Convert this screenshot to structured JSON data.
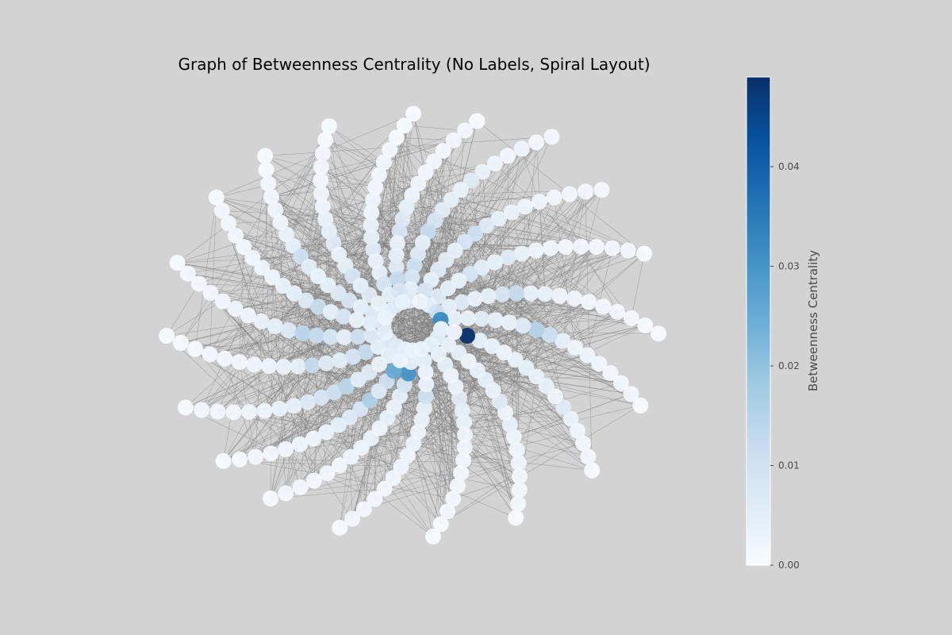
{
  "chart_data": {
    "type": "network",
    "title": "Graph of Betweenness Centrality (No Labels, Spiral Layout)",
    "layout": "spiral",
    "node_labels": "none",
    "edges": {
      "directed": true,
      "color": "#808080"
    },
    "arms": [
      {
        "angle": 95,
        "betweenness": [
          0.006,
          0.004,
          0.008,
          0.01,
          0.006,
          0.004,
          0.012,
          0.008,
          0.005,
          0.004,
          0.003,
          0.006,
          0.003,
          0.002,
          0.001,
          0.002,
          0.001,
          0.001
        ]
      },
      {
        "angle": 75,
        "betweenness": [
          0.002,
          0.008,
          0.004,
          0.006,
          0.005,
          0.004,
          0.008,
          0.01,
          0.006,
          0.004,
          0.003,
          0.002,
          0.002,
          0.001,
          0.001,
          0.001,
          0.001
        ]
      },
      {
        "angle": 55,
        "betweenness": [
          0.004,
          0.006,
          0.004,
          0.003,
          0.008,
          0.005,
          0.004,
          0.006,
          0.003,
          0.002,
          0.002,
          0.001,
          0.001,
          0.001,
          0.001,
          0.001,
          0.0
        ]
      },
      {
        "angle": 33,
        "betweenness": [
          0.01,
          0.004,
          0.006,
          0.003,
          0.004,
          0.008,
          0.012,
          0.004,
          0.003,
          0.002,
          0.002,
          0.001,
          0.001,
          0.001,
          0.001,
          0.0,
          0.0
        ]
      },
      {
        "angle": 13,
        "betweenness": [
          0.032,
          0.004,
          0.003,
          0.005,
          0.004,
          0.003,
          0.006,
          0.015,
          0.01,
          0.004,
          0.002,
          0.002,
          0.001,
          0.001,
          0.001,
          0.001,
          0.0
        ]
      },
      {
        "angle": -8,
        "betweenness": [
          0.003,
          0.002,
          0.049,
          0.004,
          0.003,
          0.002,
          0.003,
          0.004,
          0.003,
          0.004,
          0.002,
          0.006,
          0.003,
          0.002,
          0.001,
          0.001,
          0.0
        ]
      },
      {
        "angle": -30,
        "betweenness": [
          0.005,
          0.003,
          0.004,
          0.002,
          0.003,
          0.004,
          0.003,
          0.006,
          0.002,
          0.004,
          0.002,
          0.002,
          0.002,
          0.001,
          0.001,
          0.001,
          0.0
        ]
      },
      {
        "angle": -50,
        "betweenness": [
          0.004,
          0.003,
          0.004,
          0.002,
          0.003,
          0.006,
          0.004,
          0.003,
          0.002,
          0.002,
          0.001,
          0.001,
          0.001,
          0.001,
          0.001,
          0.0,
          0.0
        ]
      },
      {
        "angle": -72,
        "betweenness": [
          0.003,
          0.004,
          0.002,
          0.003,
          0.01,
          0.004,
          0.003,
          0.002,
          0.003,
          0.002,
          0.002,
          0.001,
          0.001,
          0.001,
          0.001,
          0.001,
          0.0
        ]
      },
      {
        "angle": -90,
        "betweenness": [
          0.003,
          0.004,
          0.03,
          0.008,
          0.004,
          0.003,
          0.004,
          0.002,
          0.003,
          0.002,
          0.002,
          0.001,
          0.001,
          0.001,
          0.001,
          0.001,
          0.0
        ]
      },
      {
        "angle": -105,
        "betweenness": [
          0.004,
          0.002,
          0.025,
          0.01,
          0.006,
          0.016,
          0.008,
          0.006,
          0.004,
          0.003,
          0.002,
          0.002,
          0.001,
          0.001,
          0.001,
          0.0,
          0.0
        ]
      },
      {
        "angle": -122,
        "betweenness": [
          0.005,
          0.004,
          0.003,
          0.006,
          0.005,
          0.014,
          0.01,
          0.008,
          0.006,
          0.004,
          0.003,
          0.002,
          0.002,
          0.001,
          0.001,
          0.001,
          0.0
        ]
      },
      {
        "angle": -142,
        "betweenness": [
          0.006,
          0.004,
          0.012,
          0.008,
          0.005,
          0.006,
          0.012,
          0.004,
          0.003,
          0.002,
          0.002,
          0.001,
          0.001,
          0.001,
          0.0,
          0.0,
          0.0
        ]
      },
      {
        "angle": -162,
        "betweenness": [
          0.004,
          0.006,
          0.01,
          0.004,
          0.008,
          0.012,
          0.014,
          0.006,
          0.004,
          0.003,
          0.002,
          0.002,
          0.001,
          0.001,
          0.001,
          0.001,
          0.0
        ]
      },
      {
        "angle": 178,
        "betweenness": [
          0.006,
          0.004,
          0.003,
          0.008,
          0.004,
          0.012,
          0.006,
          0.004,
          0.003,
          0.002,
          0.002,
          0.001,
          0.001,
          0.001,
          0.001,
          0.001,
          0.0
        ]
      },
      {
        "angle": 162,
        "betweenness": [
          0.003,
          0.006,
          0.004,
          0.008,
          0.006,
          0.004,
          0.003,
          0.005,
          0.01,
          0.004,
          0.003,
          0.002,
          0.002,
          0.001,
          0.001,
          0.0,
          0.0
        ]
      },
      {
        "angle": 145,
        "betweenness": [
          0.004,
          0.003,
          0.006,
          0.004,
          0.008,
          0.004,
          0.003,
          0.006,
          0.004,
          0.003,
          0.002,
          0.002,
          0.001,
          0.001,
          0.001,
          0.0,
          0.0
        ]
      },
      {
        "angle": 125,
        "betweenness": [
          0.006,
          0.004,
          0.008,
          0.004,
          0.003,
          0.006,
          0.004,
          0.003,
          0.002,
          0.002,
          0.001,
          0.001,
          0.001,
          0.001,
          0.0,
          0.0,
          0.0
        ]
      },
      {
        "angle": 110,
        "betweenness": [
          0.004,
          0.008,
          0.012,
          0.006,
          0.004,
          0.003,
          0.008,
          0.006,
          0.004,
          0.002,
          0.002,
          0.001,
          0.001,
          0.001,
          0.001,
          0.001,
          0.0
        ]
      }
    ],
    "colorbar": {
      "label": "Betweenness Centrality",
      "colormap": "Blues",
      "range": [
        0,
        0.049
      ],
      "ticks": [
        0.0,
        0.01,
        0.02,
        0.03,
        0.04
      ],
      "tick_labels": [
        "0.00",
        "0.01",
        "0.02",
        "0.03",
        "0.04"
      ]
    }
  },
  "colors": {
    "background": "#d3d3d3",
    "edge": "#808080",
    "colormap_stops": [
      "#f7fbff",
      "#deebf7",
      "#c6dbef",
      "#9ecae1",
      "#6baed6",
      "#4292c6",
      "#2171b5",
      "#08519c",
      "#08306b"
    ]
  }
}
